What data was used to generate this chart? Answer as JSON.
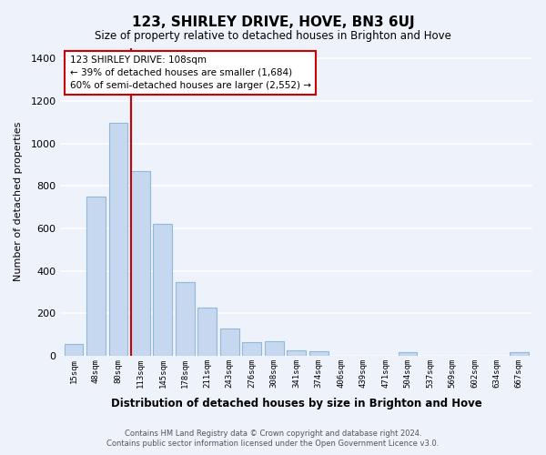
{
  "title": "123, SHIRLEY DRIVE, HOVE, BN3 6UJ",
  "subtitle": "Size of property relative to detached houses in Brighton and Hove",
  "xlabel": "Distribution of detached houses by size in Brighton and Hove",
  "ylabel": "Number of detached properties",
  "bar_labels": [
    "15sqm",
    "48sqm",
    "80sqm",
    "113sqm",
    "145sqm",
    "178sqm",
    "211sqm",
    "243sqm",
    "276sqm",
    "308sqm",
    "341sqm",
    "374sqm",
    "406sqm",
    "439sqm",
    "471sqm",
    "504sqm",
    "537sqm",
    "569sqm",
    "602sqm",
    "634sqm",
    "667sqm"
  ],
  "bar_values": [
    55,
    750,
    1095,
    870,
    620,
    345,
    225,
    130,
    65,
    70,
    25,
    20,
    0,
    0,
    0,
    15,
    0,
    0,
    0,
    0,
    15
  ],
  "bar_color": "#c5d8ef",
  "bar_edge_color": "#90b8d8",
  "vline_color": "#cc0000",
  "ylim": [
    0,
    1450
  ],
  "yticks": [
    0,
    200,
    400,
    600,
    800,
    1000,
    1200,
    1400
  ],
  "annotation_title": "123 SHIRLEY DRIVE: 108sqm",
  "annotation_line1": "← 39% of detached houses are smaller (1,684)",
  "annotation_line2": "60% of semi-detached houses are larger (2,552) →",
  "footer_line1": "Contains HM Land Registry data © Crown copyright and database right 2024.",
  "footer_line2": "Contains public sector information licensed under the Open Government Licence v3.0.",
  "background_color": "#eef2fa",
  "grid_color": "#d0d8e8"
}
